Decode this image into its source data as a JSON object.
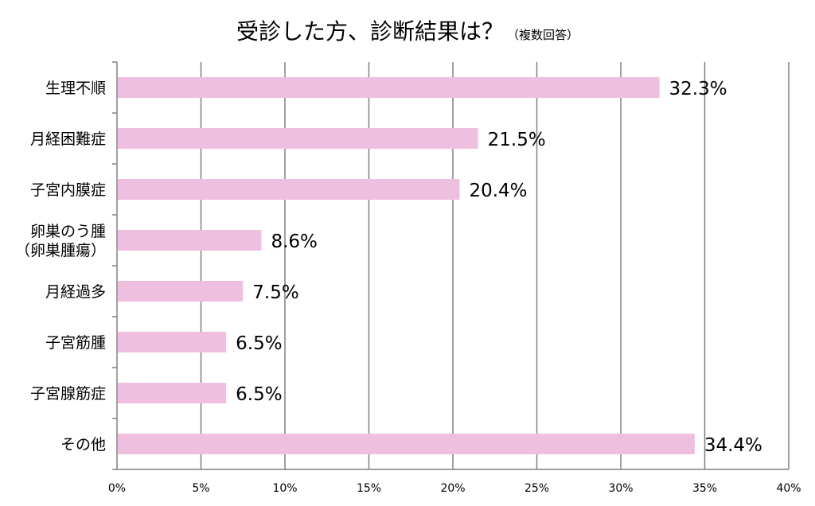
{
  "chart_data": {
    "type": "bar",
    "orientation": "horizontal",
    "title": "受診した方、診断結果は？",
    "subtitle": "（複数回答）",
    "categories": [
      "生理不順",
      "月経困難症",
      "子宮内膜症",
      "卵巣のう腫\n（卵巣腫瘍）",
      "月経過多",
      "子宮筋腫",
      "子宮腺筋症",
      "その他"
    ],
    "values": [
      32.3,
      21.5,
      20.4,
      8.6,
      7.5,
      6.5,
      6.5,
      34.4
    ],
    "data_labels": [
      "32.3%",
      "21.5%",
      "20.4%",
      "8.6%",
      "7.5%",
      "6.5%",
      "6.5%",
      "34.4%"
    ],
    "x_ticks": [
      0,
      5,
      10,
      15,
      20,
      25,
      30,
      35,
      40
    ],
    "x_tick_labels": [
      "0%",
      "5%",
      "10%",
      "15%",
      "20%",
      "25%",
      "30%",
      "35%",
      "40%"
    ],
    "xlim": [
      0,
      40
    ],
    "grid": true,
    "legend": "none",
    "colors": {
      "bar": "#efbfdf",
      "grid": "#808080",
      "axis": "#808080",
      "text": "#000000"
    }
  }
}
